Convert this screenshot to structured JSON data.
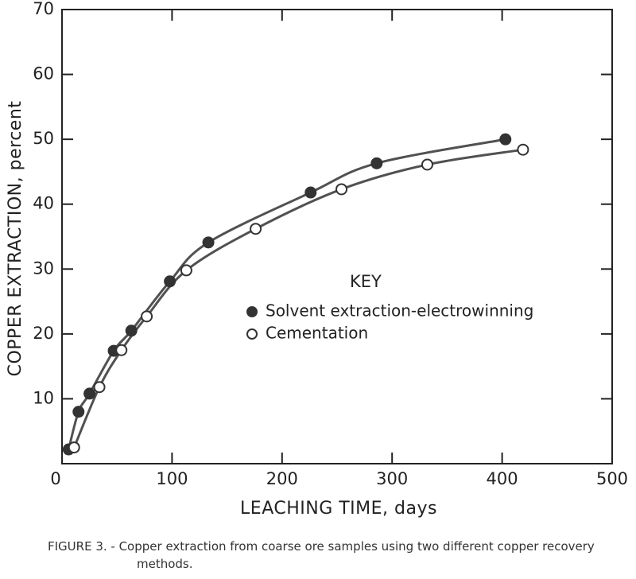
{
  "chart_data": {
    "type": "scatter",
    "x_label": "LEACHING TIME, days",
    "y_label": "COPPER EXTRACTION, percent",
    "legend_title": "KEY",
    "caption": "FIGURE 3. - Copper extraction from coarse ore samples using two different copper recovery methods.",
    "xlim": [
      0,
      500
    ],
    "xticks": [
      0,
      100,
      200,
      300,
      400,
      500
    ],
    "ylim": [
      0,
      70
    ],
    "yticks": [
      0,
      10,
      20,
      30,
      40,
      50,
      60,
      70
    ],
    "grid": false,
    "series": [
      {
        "name": "Solvent extraction-electrowinning",
        "color": "#333333",
        "marker": "filled",
        "x": [
          6,
          15,
          25,
          47,
          63,
          98,
          133,
          226,
          286,
          403
        ],
        "values": [
          2.2,
          8.0,
          10.8,
          17.4,
          20.5,
          28.1,
          34.1,
          41.8,
          46.3,
          50.0
        ]
      },
      {
        "name": "Cementation",
        "color": "#333333",
        "marker": "open",
        "x": [
          11,
          34,
          54,
          77,
          113,
          176,
          254,
          332,
          419
        ],
        "values": [
          2.5,
          11.8,
          17.5,
          22.7,
          29.8,
          36.2,
          42.3,
          46.1,
          48.4
        ]
      }
    ]
  }
}
